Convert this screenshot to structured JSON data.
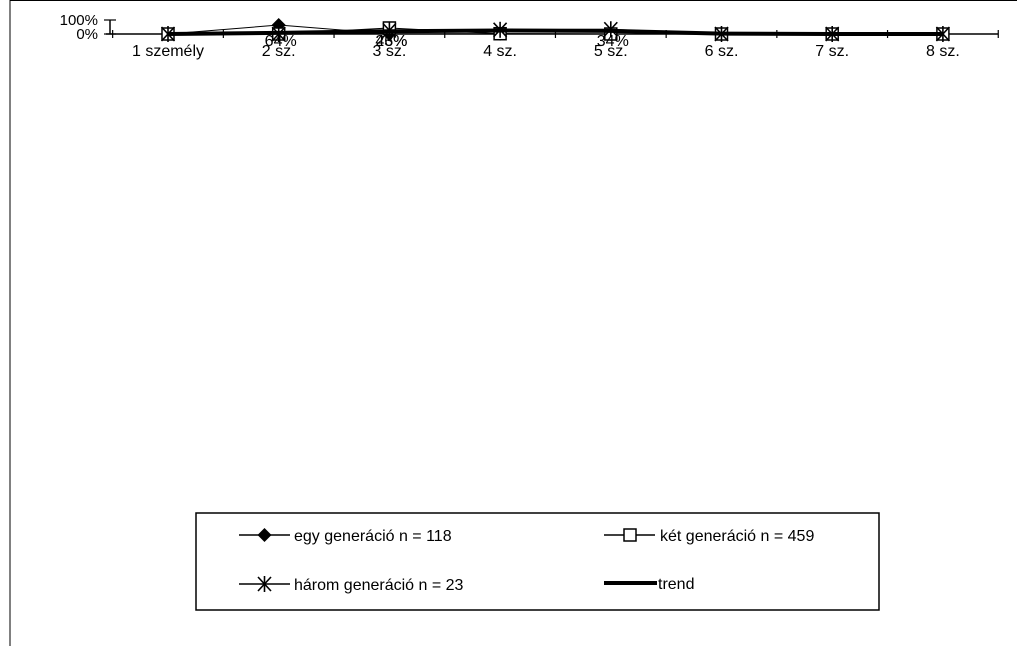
{
  "chart_data": {
    "type": "line",
    "title": "",
    "xlabel": "",
    "ylabel": "",
    "categories": [
      "1 személy",
      "2 sz.",
      "3 sz.",
      "4 sz.",
      "5 sz.",
      "6 sz.",
      "7 sz.",
      "8 sz."
    ],
    "y_tick_labels": [
      "0%",
      "100%"
    ],
    "ylim": [
      0,
      100
    ],
    "grid": false,
    "legend_position": "bottom",
    "series": [
      {
        "name": "egy generáció n = 118",
        "marker": "diamond",
        "line_width": 1,
        "color": "#000000",
        "values": [
          0,
          64,
          1,
          2,
          0,
          0,
          0,
          0
        ]
      },
      {
        "name": "két generáció n = 459",
        "marker": "square-open",
        "line_width": 1,
        "color": "#000000",
        "values": [
          0,
          0,
          43,
          2,
          0,
          0,
          0,
          0
        ]
      },
      {
        "name": "három generáció n = 23",
        "marker": "asterisk",
        "line_width": 1,
        "color": "#000000",
        "values": [
          0,
          0,
          26,
          30,
          34,
          0,
          0,
          0
        ]
      },
      {
        "name": "trend",
        "marker": "none",
        "line_width": 4,
        "color": "#000000",
        "values": [
          0,
          8,
          20,
          25,
          22,
          3,
          0,
          0
        ]
      }
    ],
    "data_labels": [
      {
        "text": "64%",
        "category_index": 1
      },
      {
        "text": "43%",
        "category_index": 2
      },
      {
        "text": "26%",
        "category_index": 2
      },
      {
        "text": "34%",
        "category_index": 4
      }
    ]
  }
}
